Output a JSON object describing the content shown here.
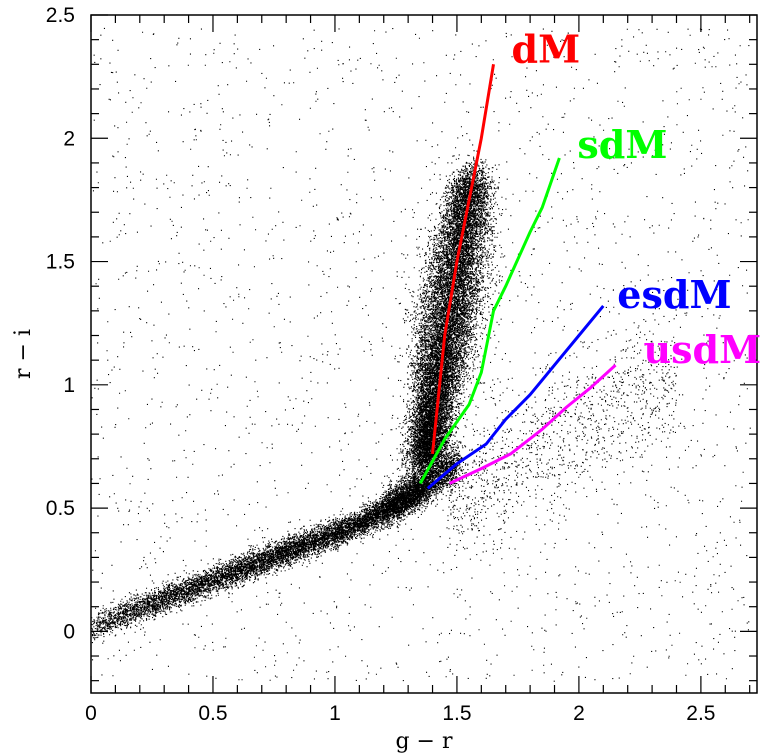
{
  "chart_data": {
    "type": "scatter",
    "title": "",
    "xlabel": "g − r",
    "ylabel": "r − i",
    "xlim": [
      0,
      2.73
    ],
    "ylim": [
      -0.25,
      2.5
    ],
    "x_ticks": [
      0,
      0.5,
      1,
      1.5,
      2,
      2.5
    ],
    "y_ticks": [
      0,
      0.5,
      1,
      1.5,
      2,
      2.5
    ],
    "grid": false,
    "legend": "none",
    "scatter_color": "#000000",
    "series": [
      {
        "name": "dM",
        "color": "#ff0000",
        "points": [
          [
            1.4,
            0.72
          ],
          [
            1.45,
            1.2
          ],
          [
            1.5,
            1.5
          ],
          [
            1.56,
            1.8
          ],
          [
            1.6,
            2.0
          ],
          [
            1.65,
            2.3
          ]
        ]
      },
      {
        "name": "sdM",
        "color": "#00ff00",
        "points": [
          [
            1.35,
            0.6
          ],
          [
            1.45,
            0.78
          ],
          [
            1.55,
            0.92
          ],
          [
            1.6,
            1.05
          ],
          [
            1.65,
            1.3
          ],
          [
            1.7,
            1.4
          ],
          [
            1.8,
            1.62
          ],
          [
            1.85,
            1.72
          ],
          [
            1.92,
            1.92
          ]
        ]
      },
      {
        "name": "esdM",
        "color": "#0000ff",
        "points": [
          [
            1.38,
            0.58
          ],
          [
            1.5,
            0.68
          ],
          [
            1.62,
            0.76
          ],
          [
            1.7,
            0.86
          ],
          [
            1.8,
            0.96
          ],
          [
            1.9,
            1.08
          ],
          [
            2.0,
            1.2
          ],
          [
            2.1,
            1.32
          ]
        ]
      },
      {
        "name": "usdM",
        "color": "#ff00ff",
        "points": [
          [
            1.47,
            0.6
          ],
          [
            1.6,
            0.66
          ],
          [
            1.72,
            0.72
          ],
          [
            1.85,
            0.82
          ],
          [
            1.95,
            0.91
          ],
          [
            2.05,
            0.99
          ],
          [
            2.15,
            1.08
          ]
        ]
      }
    ]
  }
}
